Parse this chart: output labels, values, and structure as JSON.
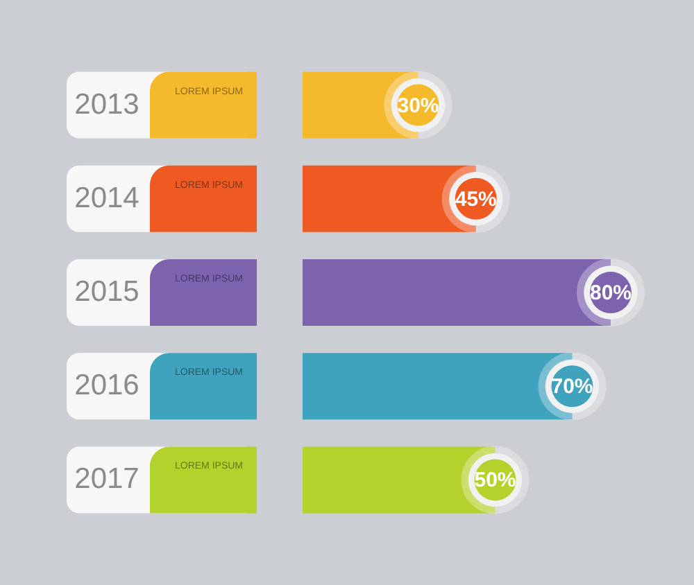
{
  "chart_data": {
    "type": "bar",
    "orientation": "horizontal",
    "categories": [
      "2013",
      "2014",
      "2015",
      "2016",
      "2017"
    ],
    "values": [
      30,
      45,
      80,
      70,
      50
    ],
    "colors": [
      "#f5b92c",
      "#ee5a22",
      "#7d62ae",
      "#3fa3bd",
      "#b3d22c"
    ],
    "value_labels": [
      "30%",
      "45%",
      "80%",
      "70%",
      "50%"
    ],
    "tick_labels": "y",
    "annotations": [
      "LOREM IPSUM",
      "LOREM IPSUM",
      "LOREM IPSUM",
      "LOREM IPSUM",
      "LOREM IPSUM"
    ]
  }
}
